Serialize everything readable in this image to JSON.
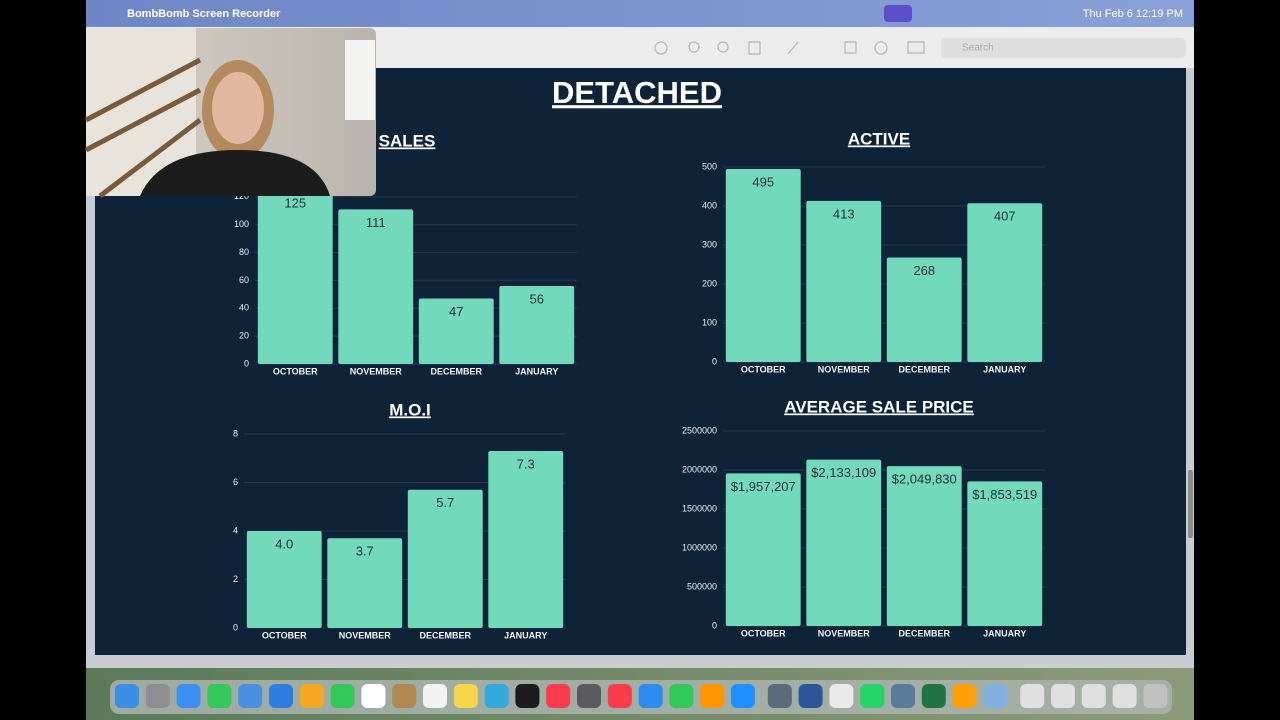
{
  "menu_bar": {
    "app": "BombBomb Screen Recorder",
    "clock": "Thu Feb 6 12:19 PM"
  },
  "toolbar": {
    "search": "Search"
  },
  "heading": "DETACHED",
  "chart_data": [
    {
      "type": "bar",
      "title": "SALES",
      "categories": [
        "OCTOBER",
        "NOVEMBER",
        "DECEMBER",
        "JANUARY"
      ],
      "values": [
        125,
        111,
        47,
        56
      ],
      "color": "#72d9bb",
      "ylim": [
        0,
        140
      ],
      "yticks": [
        0,
        20,
        40,
        60,
        80,
        100,
        120
      ],
      "grid": true
    },
    {
      "type": "bar",
      "title": "ACTIVE",
      "categories": [
        "OCTOBER",
        "NOVEMBER",
        "DECEMBER",
        "JANUARY"
      ],
      "values": [
        495,
        413,
        268,
        407
      ],
      "color": "#72d9bb",
      "ylim": [
        0,
        500
      ],
      "yticks": [
        0,
        100,
        200,
        300,
        400,
        500
      ],
      "grid": true
    },
    {
      "type": "bar",
      "title": "M.O.I",
      "categories": [
        "OCTOBER",
        "NOVEMBER",
        "DECEMBER",
        "JANUARY"
      ],
      "values": [
        4.0,
        3.7,
        5.7,
        7.3
      ],
      "value_labels": [
        "4.0",
        "3.7",
        "5.7",
        "7.3"
      ],
      "color": "#72d9bb",
      "ylim": [
        0,
        8
      ],
      "yticks": [
        0,
        2,
        4,
        6,
        8
      ],
      "grid": true
    },
    {
      "type": "bar",
      "title": "AVERAGE SALE PRICE",
      "categories": [
        "OCTOBER",
        "NOVEMBER",
        "DECEMBER",
        "JANUARY"
      ],
      "values": [
        1957207,
        2133109,
        2049830,
        1853519
      ],
      "value_labels": [
        "$1,957,207",
        "$2,133,109",
        "$2,049,830",
        "$1,853,519"
      ],
      "color": "#72d9bb",
      "ylim": [
        0,
        2500000
      ],
      "yticks": [
        0,
        500000,
        1000000,
        1500000,
        2000000,
        2500000
      ],
      "grid": true
    }
  ]
}
